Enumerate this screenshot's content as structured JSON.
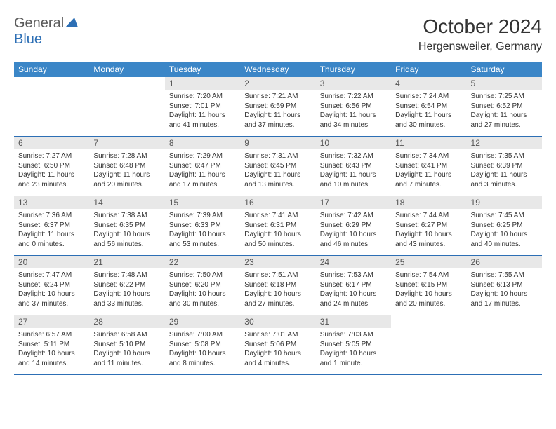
{
  "logo": {
    "part1": "General",
    "part2": "Blue"
  },
  "title": "October 2024",
  "location": "Hergensweiler, Germany",
  "colors": {
    "header_bg": "#3b86c7",
    "header_text": "#ffffff",
    "daynum_bg": "#e8e8e8",
    "daynum_text": "#555555",
    "rule": "#2d6fb5",
    "logo_gray": "#5a5a5a",
    "logo_blue": "#2d6fb5"
  },
  "dayNames": [
    "Sunday",
    "Monday",
    "Tuesday",
    "Wednesday",
    "Thursday",
    "Friday",
    "Saturday"
  ],
  "weeks": [
    [
      null,
      null,
      {
        "n": "1",
        "sr": "Sunrise: 7:20 AM",
        "ss": "Sunset: 7:01 PM",
        "dl": "Daylight: 11 hours and 41 minutes."
      },
      {
        "n": "2",
        "sr": "Sunrise: 7:21 AM",
        "ss": "Sunset: 6:59 PM",
        "dl": "Daylight: 11 hours and 37 minutes."
      },
      {
        "n": "3",
        "sr": "Sunrise: 7:22 AM",
        "ss": "Sunset: 6:56 PM",
        "dl": "Daylight: 11 hours and 34 minutes."
      },
      {
        "n": "4",
        "sr": "Sunrise: 7:24 AM",
        "ss": "Sunset: 6:54 PM",
        "dl": "Daylight: 11 hours and 30 minutes."
      },
      {
        "n": "5",
        "sr": "Sunrise: 7:25 AM",
        "ss": "Sunset: 6:52 PM",
        "dl": "Daylight: 11 hours and 27 minutes."
      }
    ],
    [
      {
        "n": "6",
        "sr": "Sunrise: 7:27 AM",
        "ss": "Sunset: 6:50 PM",
        "dl": "Daylight: 11 hours and 23 minutes."
      },
      {
        "n": "7",
        "sr": "Sunrise: 7:28 AM",
        "ss": "Sunset: 6:48 PM",
        "dl": "Daylight: 11 hours and 20 minutes."
      },
      {
        "n": "8",
        "sr": "Sunrise: 7:29 AM",
        "ss": "Sunset: 6:47 PM",
        "dl": "Daylight: 11 hours and 17 minutes."
      },
      {
        "n": "9",
        "sr": "Sunrise: 7:31 AM",
        "ss": "Sunset: 6:45 PM",
        "dl": "Daylight: 11 hours and 13 minutes."
      },
      {
        "n": "10",
        "sr": "Sunrise: 7:32 AM",
        "ss": "Sunset: 6:43 PM",
        "dl": "Daylight: 11 hours and 10 minutes."
      },
      {
        "n": "11",
        "sr": "Sunrise: 7:34 AM",
        "ss": "Sunset: 6:41 PM",
        "dl": "Daylight: 11 hours and 7 minutes."
      },
      {
        "n": "12",
        "sr": "Sunrise: 7:35 AM",
        "ss": "Sunset: 6:39 PM",
        "dl": "Daylight: 11 hours and 3 minutes."
      }
    ],
    [
      {
        "n": "13",
        "sr": "Sunrise: 7:36 AM",
        "ss": "Sunset: 6:37 PM",
        "dl": "Daylight: 11 hours and 0 minutes."
      },
      {
        "n": "14",
        "sr": "Sunrise: 7:38 AM",
        "ss": "Sunset: 6:35 PM",
        "dl": "Daylight: 10 hours and 56 minutes."
      },
      {
        "n": "15",
        "sr": "Sunrise: 7:39 AM",
        "ss": "Sunset: 6:33 PM",
        "dl": "Daylight: 10 hours and 53 minutes."
      },
      {
        "n": "16",
        "sr": "Sunrise: 7:41 AM",
        "ss": "Sunset: 6:31 PM",
        "dl": "Daylight: 10 hours and 50 minutes."
      },
      {
        "n": "17",
        "sr": "Sunrise: 7:42 AM",
        "ss": "Sunset: 6:29 PM",
        "dl": "Daylight: 10 hours and 46 minutes."
      },
      {
        "n": "18",
        "sr": "Sunrise: 7:44 AM",
        "ss": "Sunset: 6:27 PM",
        "dl": "Daylight: 10 hours and 43 minutes."
      },
      {
        "n": "19",
        "sr": "Sunrise: 7:45 AM",
        "ss": "Sunset: 6:25 PM",
        "dl": "Daylight: 10 hours and 40 minutes."
      }
    ],
    [
      {
        "n": "20",
        "sr": "Sunrise: 7:47 AM",
        "ss": "Sunset: 6:24 PM",
        "dl": "Daylight: 10 hours and 37 minutes."
      },
      {
        "n": "21",
        "sr": "Sunrise: 7:48 AM",
        "ss": "Sunset: 6:22 PM",
        "dl": "Daylight: 10 hours and 33 minutes."
      },
      {
        "n": "22",
        "sr": "Sunrise: 7:50 AM",
        "ss": "Sunset: 6:20 PM",
        "dl": "Daylight: 10 hours and 30 minutes."
      },
      {
        "n": "23",
        "sr": "Sunrise: 7:51 AM",
        "ss": "Sunset: 6:18 PM",
        "dl": "Daylight: 10 hours and 27 minutes."
      },
      {
        "n": "24",
        "sr": "Sunrise: 7:53 AM",
        "ss": "Sunset: 6:17 PM",
        "dl": "Daylight: 10 hours and 24 minutes."
      },
      {
        "n": "25",
        "sr": "Sunrise: 7:54 AM",
        "ss": "Sunset: 6:15 PM",
        "dl": "Daylight: 10 hours and 20 minutes."
      },
      {
        "n": "26",
        "sr": "Sunrise: 7:55 AM",
        "ss": "Sunset: 6:13 PM",
        "dl": "Daylight: 10 hours and 17 minutes."
      }
    ],
    [
      {
        "n": "27",
        "sr": "Sunrise: 6:57 AM",
        "ss": "Sunset: 5:11 PM",
        "dl": "Daylight: 10 hours and 14 minutes."
      },
      {
        "n": "28",
        "sr": "Sunrise: 6:58 AM",
        "ss": "Sunset: 5:10 PM",
        "dl": "Daylight: 10 hours and 11 minutes."
      },
      {
        "n": "29",
        "sr": "Sunrise: 7:00 AM",
        "ss": "Sunset: 5:08 PM",
        "dl": "Daylight: 10 hours and 8 minutes."
      },
      {
        "n": "30",
        "sr": "Sunrise: 7:01 AM",
        "ss": "Sunset: 5:06 PM",
        "dl": "Daylight: 10 hours and 4 minutes."
      },
      {
        "n": "31",
        "sr": "Sunrise: 7:03 AM",
        "ss": "Sunset: 5:05 PM",
        "dl": "Daylight: 10 hours and 1 minute."
      },
      null,
      null
    ]
  ]
}
